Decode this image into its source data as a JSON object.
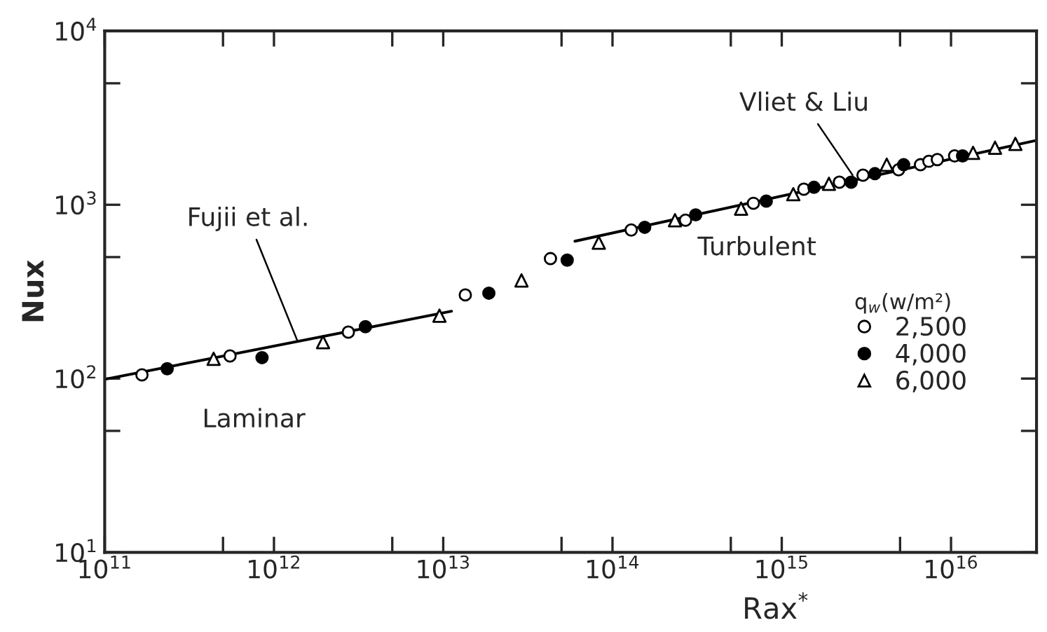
{
  "chart_data": {
    "type": "scatter",
    "xlabel": "Rax$^{*}$",
    "ylabel": "Nux",
    "legend_title": "q$_{w}$(w/m²)",
    "legend": "right",
    "log": "xy",
    "grid": false,
    "xlim": [
      100000000000.0,
      3.2e+16
    ],
    "ylim": [
      10,
      10000
    ],
    "xticks": [
      {
        "value": 100000000000.0,
        "label": "10$^{11}$"
      },
      {
        "value": 500000000000.0,
        "label": null
      },
      {
        "value": 1000000000000.0,
        "label": "10$^{12}$"
      },
      {
        "value": 5000000000000.0,
        "label": null
      },
      {
        "value": 10000000000000.0,
        "label": "10$^{13}$"
      },
      {
        "value": 50000000000000.0,
        "label": null
      },
      {
        "value": 100000000000000.0,
        "label": "10$^{14}$"
      },
      {
        "value": 500000000000000.0,
        "label": null
      },
      {
        "value": 1000000000000000.0,
        "label": "10$^{15}$"
      },
      {
        "value": 5000000000000000.0,
        "label": null
      },
      {
        "value": 1e+16,
        "label": "10$^{16}$"
      }
    ],
    "yticks": [
      {
        "value": 10,
        "label": "10$^{1}$"
      },
      {
        "value": 50,
        "label": null
      },
      {
        "value": 100,
        "label": "10$^{2}$"
      },
      {
        "value": 500,
        "label": null
      },
      {
        "value": 1000,
        "label": "10$^{3}$"
      },
      {
        "value": 5000,
        "label": null
      },
      {
        "value": 10000,
        "label": "10$^{4}$"
      }
    ],
    "series": [
      {
        "name": "2,500",
        "marker": "circle",
        "color": "#ffffff",
        "x": [
          166000000000.0,
          550000000000.0,
          2750000000000.0,
          13500000000000.0,
          270000000000000.0,
          43000000000000.0,
          129000000000000.0,
          680000000000000.0,
          1350000000000000.0,
          2190000000000000.0,
          3020000000000000.0,
          4900000000000000.0,
          6600000000000000.0,
          7400000000000000.0,
          8300000000000000.0,
          1.05e+16
        ],
        "values": [
          105,
          135,
          185,
          303,
          815,
          490,
          716,
          1020,
          1230,
          1350,
          1480,
          1590,
          1700,
          1780,
          1820,
          1910
        ]
      },
      {
        "name": "4,000",
        "marker": "circle",
        "color": "#000000",
        "x": [
          234000000000.0,
          850000000000.0,
          3470000000000.0,
          18600000000000.0,
          54000000000000.0,
          155000000000000.0,
          310000000000000.0,
          810000000000000.0,
          1550000000000000.0,
          2570000000000000.0,
          3550000000000000.0,
          5250000000000000.0,
          1.17e+16
        ],
        "values": [
          114,
          132,
          199,
          310,
          480,
          742,
          875,
          1050,
          1260,
          1350,
          1510,
          1700,
          1910
        ]
      },
      {
        "name": "6,000",
        "marker": "triangle",
        "color": "#ffffff",
        "x": [
          440000000000.0,
          1950000000000.0,
          9500000000000.0,
          29000000000000.0,
          83000000000000.0,
          234000000000000.0,
          575000000000000.0,
          1170000000000000.0,
          1900000000000000.0,
          4170000000000000.0,
          1.35e+16,
          1.82e+16,
          2.4e+16
        ],
        "values": [
          130,
          162,
          230,
          367,
          605,
          815,
          950,
          1150,
          1320,
          1700,
          1990,
          2130,
          2240
        ]
      },
      {
        "type": "line",
        "color": "#000000",
        "x": [
          100000000000.0,
          11200000000000.0
        ],
        "values": [
          99,
          244
        ]
      },
      {
        "type": "line",
        "color": "#000000",
        "x": [
          60000000000000.0,
          3.16e+16
        ],
        "values": [
          617,
          2340
        ]
      }
    ],
    "annotations": [
      {
        "text": "Fujii et al.",
        "x": 1400000000000.0,
        "y": 158
      },
      {
        "text": "Vliet & Liu",
        "x": 2700000000000000.0,
        "y": 1420
      },
      "Laminar",
      "Turbulent"
    ]
  }
}
